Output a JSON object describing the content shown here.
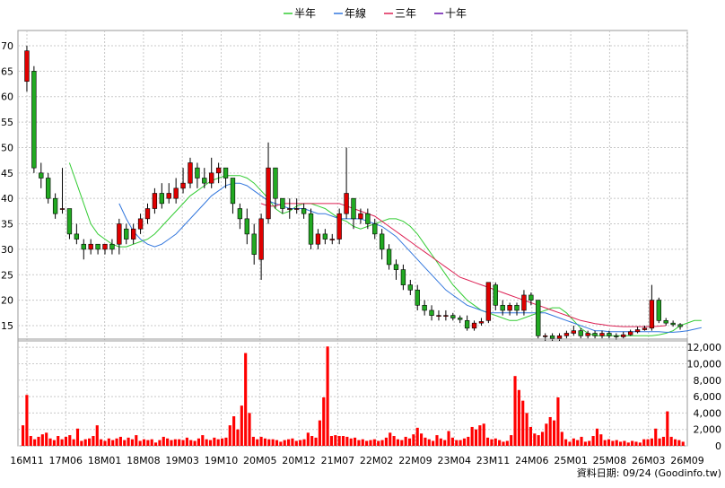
{
  "legend": [
    {
      "name": "半年",
      "color": "#33cc33"
    },
    {
      "name": "年線",
      "color": "#3377dd"
    },
    {
      "name": "三年",
      "color": "#dd2255"
    },
    {
      "name": "十年",
      "color": "#6611aa"
    }
  ],
  "footer": {
    "text": "資料日期: 09/24  (Goodinfo.tw)"
  },
  "chart_data": [
    {
      "type": "candlestick",
      "title": "",
      "ylim": [
        12,
        73
      ],
      "y_ticks": [
        15,
        20,
        25,
        30,
        35,
        40,
        45,
        50,
        55,
        60,
        65,
        70
      ],
      "x_tick_labels": [
        "16M11",
        "17M06",
        "18M01",
        "18M08",
        "19M03",
        "19M10",
        "20M05",
        "20M12",
        "21M07",
        "22M02",
        "22M09",
        "23M04",
        "23M11",
        "24M06",
        "25M01",
        "25M08",
        "26M03",
        "26M09"
      ],
      "up_color": "#e00000",
      "down_color": "#22aa22",
      "grid": true,
      "candles": [
        {
          "o": 63,
          "c": 69,
          "h": 70,
          "l": 61
        },
        {
          "o": 65,
          "c": 46,
          "h": 66,
          "l": 45
        },
        {
          "o": 45,
          "c": 44,
          "h": 47,
          "l": 42
        },
        {
          "o": 44,
          "c": 40,
          "h": 45,
          "l": 39
        },
        {
          "o": 40,
          "c": 37,
          "h": 41,
          "l": 36
        },
        {
          "o": 38,
          "c": 38,
          "h": 46,
          "l": 37
        },
        {
          "o": 38,
          "c": 33,
          "h": 38,
          "l": 32
        },
        {
          "o": 33,
          "c": 32,
          "h": 35,
          "l": 31
        },
        {
          "o": 31,
          "c": 30,
          "h": 32,
          "l": 28
        },
        {
          "o": 30,
          "c": 31,
          "h": 32,
          "l": 29
        },
        {
          "o": 31,
          "c": 30,
          "h": 31,
          "l": 29
        },
        {
          "o": 30,
          "c": 31,
          "h": 31,
          "l": 29
        },
        {
          "o": 31,
          "c": 30,
          "h": 32,
          "l": 29
        },
        {
          "o": 31,
          "c": 35,
          "h": 36,
          "l": 29
        },
        {
          "o": 34,
          "c": 32,
          "h": 35,
          "l": 31
        },
        {
          "o": 32,
          "c": 34,
          "h": 35,
          "l": 31
        },
        {
          "o": 34,
          "c": 36,
          "h": 37,
          "l": 33
        },
        {
          "o": 36,
          "c": 38,
          "h": 39,
          "l": 35
        },
        {
          "o": 38,
          "c": 41,
          "h": 42,
          "l": 37
        },
        {
          "o": 41,
          "c": 39,
          "h": 43,
          "l": 38
        },
        {
          "o": 40,
          "c": 41,
          "h": 43,
          "l": 39
        },
        {
          "o": 40,
          "c": 42,
          "h": 44,
          "l": 39
        },
        {
          "o": 42,
          "c": 43,
          "h": 46,
          "l": 41
        },
        {
          "o": 43,
          "c": 47,
          "h": 48,
          "l": 42
        },
        {
          "o": 46,
          "c": 44,
          "h": 47,
          "l": 42
        },
        {
          "o": 44,
          "c": 43,
          "h": 46,
          "l": 42
        },
        {
          "o": 43,
          "c": 45,
          "h": 48,
          "l": 42
        },
        {
          "o": 45,
          "c": 46,
          "h": 47,
          "l": 43
        },
        {
          "o": 46,
          "c": 44,
          "h": 46,
          "l": 42
        },
        {
          "o": 44,
          "c": 39,
          "h": 44,
          "l": 37
        },
        {
          "o": 38,
          "c": 36,
          "h": 39,
          "l": 34
        },
        {
          "o": 36,
          "c": 33,
          "h": 38,
          "l": 31
        },
        {
          "o": 33,
          "c": 29,
          "h": 35,
          "l": 27
        },
        {
          "o": 28,
          "c": 36,
          "h": 37,
          "l": 24
        },
        {
          "o": 36,
          "c": 46,
          "h": 51,
          "l": 35
        },
        {
          "o": 46,
          "c": 40,
          "h": 46,
          "l": 38
        },
        {
          "o": 40,
          "c": 38,
          "h": 40,
          "l": 37
        },
        {
          "o": 38,
          "c": 38,
          "h": 40,
          "l": 36
        },
        {
          "o": 38,
          "c": 38,
          "h": 40,
          "l": 37
        },
        {
          "o": 38,
          "c": 37,
          "h": 39,
          "l": 36
        },
        {
          "o": 37,
          "c": 31,
          "h": 38,
          "l": 30
        },
        {
          "o": 31,
          "c": 33,
          "h": 34,
          "l": 30
        },
        {
          "o": 33,
          "c": 32,
          "h": 34,
          "l": 31
        },
        {
          "o": 32,
          "c": 32,
          "h": 33,
          "l": 31
        },
        {
          "o": 32,
          "c": 37,
          "h": 38,
          "l": 31
        },
        {
          "o": 37,
          "c": 41,
          "h": 50,
          "l": 36
        },
        {
          "o": 40,
          "c": 36,
          "h": 40,
          "l": 34
        },
        {
          "o": 36,
          "c": 37,
          "h": 38,
          "l": 35
        },
        {
          "o": 37,
          "c": 35,
          "h": 38,
          "l": 34
        },
        {
          "o": 35,
          "c": 33,
          "h": 36,
          "l": 32
        },
        {
          "o": 33,
          "c": 30,
          "h": 34,
          "l": 28
        },
        {
          "o": 30,
          "c": 27,
          "h": 31,
          "l": 26
        },
        {
          "o": 27,
          "c": 26,
          "h": 28,
          "l": 24
        },
        {
          "o": 26,
          "c": 23,
          "h": 27,
          "l": 22
        },
        {
          "o": 23,
          "c": 22,
          "h": 24,
          "l": 21
        },
        {
          "o": 22,
          "c": 19,
          "h": 23,
          "l": 18
        },
        {
          "o": 19,
          "c": 18,
          "h": 20,
          "l": 17
        },
        {
          "o": 18,
          "c": 17,
          "h": 19,
          "l": 16
        },
        {
          "o": 17,
          "c": 17,
          "h": 18,
          "l": 16
        },
        {
          "o": 17,
          "c": 17,
          "h": 18,
          "l": 16
        },
        {
          "o": 17,
          "c": 16.5,
          "h": 17.5,
          "l": 16
        },
        {
          "o": 16.5,
          "c": 16.2,
          "h": 17,
          "l": 15.5
        },
        {
          "o": 16,
          "c": 14.5,
          "h": 17,
          "l": 14
        },
        {
          "o": 14.5,
          "c": 15.5,
          "h": 16,
          "l": 14
        },
        {
          "o": 15.5,
          "c": 15.8,
          "h": 16.5,
          "l": 15
        },
        {
          "o": 16,
          "c": 23.5,
          "h": 23.5,
          "l": 15.5
        },
        {
          "o": 23,
          "c": 19,
          "h": 23.5,
          "l": 18
        },
        {
          "o": 19,
          "c": 18,
          "h": 20,
          "l": 17
        },
        {
          "o": 18,
          "c": 19,
          "h": 19.5,
          "l": 17
        },
        {
          "o": 19,
          "c": 18,
          "h": 19.5,
          "l": 17
        },
        {
          "o": 18,
          "c": 21,
          "h": 22,
          "l": 17
        },
        {
          "o": 21,
          "c": 20,
          "h": 21.5,
          "l": 19
        },
        {
          "o": 20,
          "c": 13,
          "h": 20,
          "l": 12.5
        },
        {
          "o": 13,
          "c": 13,
          "h": 13.5,
          "l": 12
        },
        {
          "o": 13,
          "c": 12.5,
          "h": 13.5,
          "l": 12
        },
        {
          "o": 12.5,
          "c": 13,
          "h": 13.5,
          "l": 12
        },
        {
          "o": 13,
          "c": 13.5,
          "h": 14,
          "l": 12.5
        },
        {
          "o": 13.5,
          "c": 14,
          "h": 15,
          "l": 13
        },
        {
          "o": 14,
          "c": 13,
          "h": 14.5,
          "l": 12.5
        },
        {
          "o": 13,
          "c": 13.5,
          "h": 14,
          "l": 12.5
        },
        {
          "o": 13.5,
          "c": 13,
          "h": 14,
          "l": 12.5
        },
        {
          "o": 13,
          "c": 13.5,
          "h": 14,
          "l": 12.5
        },
        {
          "o": 13.5,
          "c": 13,
          "h": 14,
          "l": 12.5
        },
        {
          "o": 13,
          "c": 12.8,
          "h": 13.5,
          "l": 12.2
        },
        {
          "o": 12.8,
          "c": 13.2,
          "h": 13.8,
          "l": 12.5
        },
        {
          "o": 13.2,
          "c": 13.8,
          "h": 14.2,
          "l": 13
        },
        {
          "o": 13.8,
          "c": 14.2,
          "h": 14.8,
          "l": 13.5
        },
        {
          "o": 14.2,
          "c": 14.5,
          "h": 15,
          "l": 14
        },
        {
          "o": 14.5,
          "c": 20,
          "h": 23,
          "l": 14
        },
        {
          "o": 20,
          "c": 16,
          "h": 20.5,
          "l": 15.5
        },
        {
          "o": 16,
          "c": 15.5,
          "h": 16.5,
          "l": 15
        },
        {
          "o": 15.5,
          "c": 15.2,
          "h": 16,
          "l": 14.8
        },
        {
          "o": 15.2,
          "c": 14.8,
          "h": 15.5,
          "l": 14.2
        }
      ],
      "moving_averages": [
        {
          "name": "半年",
          "color": "#33cc33",
          "start": 6,
          "values": [
            47,
            43,
            39,
            35,
            33,
            32,
            31,
            30.5,
            30.5,
            31,
            31.5,
            32,
            33,
            34.5,
            36,
            37.5,
            39,
            40.5,
            41.5,
            42.5,
            43.5,
            44,
            44.5,
            44.5,
            44.5,
            44,
            43,
            41.5,
            40,
            38,
            37,
            37.5,
            38.5,
            39,
            39,
            38.5,
            38,
            37,
            36,
            35.5,
            34.5,
            34,
            34.5,
            35,
            35.5,
            36,
            36,
            35.5,
            34.5,
            33,
            31,
            29,
            27,
            25,
            23,
            21.5,
            20,
            19,
            18,
            17.5,
            17,
            16.5,
            16,
            16,
            16.5,
            17,
            17.5,
            18,
            18.5,
            18.5,
            17.5,
            16,
            14.5,
            13.5,
            13,
            13,
            13,
            13,
            13,
            13,
            13,
            13,
            13,
            13.2,
            13.5,
            14,
            15,
            15.5,
            16,
            16
          ]
        },
        {
          "name": "年線",
          "color": "#3377dd",
          "start": 13,
          "values": [
            39,
            36,
            33.5,
            32,
            31,
            30.5,
            31,
            32,
            33,
            34.5,
            36,
            37.5,
            39,
            40.5,
            41.5,
            42.5,
            43,
            43,
            42.5,
            41.5,
            40.5,
            39.5,
            39,
            38.5,
            38,
            38,
            38,
            37.5,
            37,
            37,
            36.5,
            36,
            36,
            36,
            36,
            35.5,
            35,
            34.5,
            33.5,
            32.5,
            31,
            29.5,
            28,
            26.5,
            25,
            23.5,
            22,
            21,
            20,
            19,
            18.5,
            18,
            17.5,
            17.5,
            17.5,
            17.5,
            17.5,
            17.5,
            17.5,
            17.5,
            17.5,
            17,
            16.5,
            16,
            15.5,
            15,
            14.5,
            14,
            14,
            13.8,
            13.8,
            13.8,
            13.8,
            13.8,
            13.8,
            13.8,
            13.8,
            13.7,
            13.7,
            13.8,
            14,
            14.3,
            14.6
          ]
        },
        {
          "name": "三年",
          "color": "#dd2255",
          "start": 33,
          "values": [
            39,
            38.5,
            38.5,
            39,
            39,
            39,
            39,
            39,
            39,
            39,
            39,
            39,
            38.5,
            38,
            37.5,
            37,
            36.5,
            35.5,
            34.5,
            33.5,
            32.5,
            31.5,
            30.5,
            29.5,
            28.5,
            27.5,
            26.5,
            25.5,
            24.5,
            24,
            23.5,
            23,
            22.5,
            22,
            21.5,
            21,
            20.5,
            20,
            19.5,
            19,
            18.5,
            18,
            17.5,
            17,
            16.5,
            16,
            15.7,
            15.4,
            15.2,
            15,
            14.9,
            14.8,
            14.8,
            14.8,
            14.8,
            14.8,
            14.9,
            15
          ]
        }
      ]
    },
    {
      "type": "bar",
      "title": "",
      "unit": "volume",
      "ylim": [
        0,
        13000
      ],
      "y_ticks": [
        0,
        2000,
        4000,
        6000,
        8000,
        10000,
        12000
      ],
      "y_tick_labels": [
        "0",
        "2,000",
        "4,000",
        "6,000",
        "8,000",
        "10,000",
        "12,000"
      ],
      "color": "#ff0000",
      "values": [
        2500,
        6200,
        1200,
        800,
        1100,
        1400,
        1600,
        900,
        700,
        1200,
        800,
        1100,
        1300,
        800,
        2100,
        600,
        800,
        900,
        1200,
        2500,
        800,
        600,
        900,
        700,
        900,
        1100,
        700,
        1000,
        800,
        1300,
        600,
        800,
        700,
        800,
        400,
        700,
        1100,
        900,
        700,
        800,
        800,
        700,
        1000,
        700,
        600,
        900,
        1300,
        800,
        700,
        1000,
        800,
        900,
        1000,
        2500,
        3600,
        2000,
        4900,
        11300,
        4000,
        1100,
        800,
        1100,
        900,
        800,
        800,
        700,
        500,
        700,
        800,
        900,
        600,
        700,
        800,
        1600,
        1200,
        1000,
        3100,
        5900,
        12100,
        1200,
        1300,
        1200,
        1200,
        1100,
        900,
        1000,
        700,
        800,
        600,
        700,
        800,
        600,
        700,
        1000,
        1600,
        1200,
        800,
        700,
        1100,
        900,
        1400,
        2200,
        1500,
        1000,
        800,
        600,
        1300,
        900,
        700,
        1800,
        1000,
        700,
        700,
        900,
        1100,
        2300,
        2000,
        2500,
        2700,
        1000,
        800,
        900,
        700,
        500,
        600,
        1300,
        8500,
        6800,
        5500,
        4000,
        2300,
        1500,
        1300,
        1700,
        2700,
        3500,
        3100,
        5900,
        1700,
        800,
        500,
        900,
        700,
        1100,
        500,
        600,
        1200,
        2100,
        1400,
        700,
        800,
        600,
        700,
        500,
        600,
        400,
        600,
        500,
        400,
        800,
        800,
        900,
        2100,
        900,
        1100,
        4200,
        1100,
        800,
        700,
        500
      ]
    }
  ]
}
